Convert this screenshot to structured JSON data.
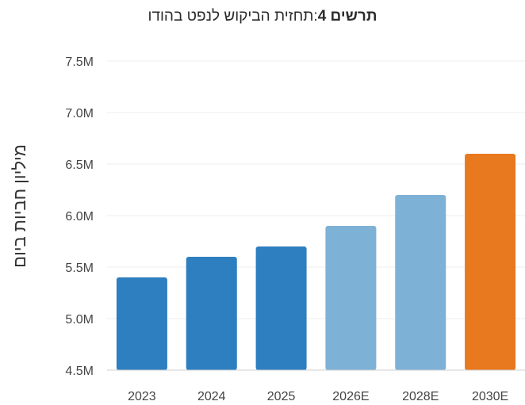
{
  "chart_data": {
    "type": "bar",
    "title_bold": "תרשים 4",
    "title_rest": ":תחזית הביקוש לנפט בהודו",
    "xlabel": "",
    "ylabel": "מיליון חביות ביום",
    "categories": [
      "2023",
      "2024",
      "2025",
      "2026E",
      "2028E",
      "2030E"
    ],
    "values": [
      5.4,
      5.6,
      5.7,
      5.9,
      6.2,
      6.6
    ],
    "colors": [
      "#2e7fbf",
      "#2e7fbf",
      "#2e7fbf",
      "#7eb1d6",
      "#7eb1d6",
      "#e8791f"
    ],
    "ylim": [
      4.5,
      7.5
    ],
    "yticks": [
      4.5,
      5.0,
      5.5,
      6.0,
      6.5,
      7.0,
      7.5
    ],
    "ytick_labels": [
      "4.5M",
      "5.0M",
      "5.5M",
      "6.0M",
      "6.5M",
      "7.0M",
      "7.5M"
    ],
    "grid": true,
    "gridColor": "#ececec",
    "textColor": "#444444"
  }
}
